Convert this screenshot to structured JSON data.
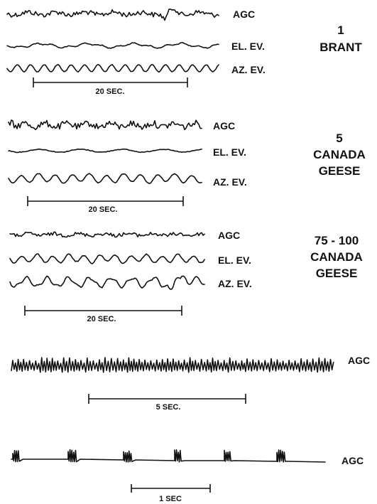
{
  "groups": [
    {
      "id": "brant",
      "label_lines": [
        "1",
        "BRANT"
      ],
      "traces": [
        "AGC",
        "EL. EV.",
        "AZ. EV."
      ],
      "scale": "20 SEC."
    },
    {
      "id": "canada5",
      "label_lines": [
        "5",
        "CANADA",
        "GEESE"
      ],
      "traces": [
        "AGC",
        "EL. EV.",
        "AZ. EV."
      ],
      "scale": "20 SEC."
    },
    {
      "id": "canada75",
      "label_lines": [
        "75 - 100",
        "CANADA",
        "GEESE"
      ],
      "traces": [
        "AGC",
        "EL. EV.",
        "AZ. EV."
      ],
      "scale": "20 SEC."
    }
  ],
  "fast_agc": {
    "trace": "AGC",
    "scale": "5 SEC."
  },
  "pulse_agc": {
    "trace": "AGC",
    "scale": "1 SEC"
  }
}
